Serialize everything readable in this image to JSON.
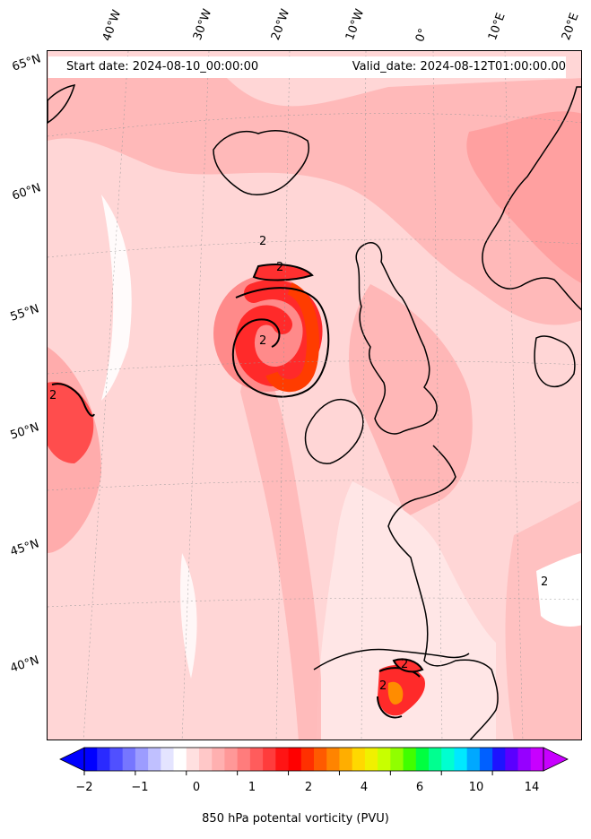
{
  "header": {
    "start_date": "Start date: 2024-08-10_00:00:00",
    "valid_date": "Valid_date: 2024-08-12T01:00:00.00"
  },
  "map": {
    "top_longitude_labels": [
      "40°W",
      "30°W",
      "20°W",
      "10°W",
      "0°",
      "10°E",
      "20°E"
    ],
    "left_latitude_labels": [
      "65°N",
      "60°N",
      "55°N",
      "50°N",
      "45°N",
      "40°N"
    ],
    "contour_labels": [
      "2",
      "2",
      "2",
      "2",
      "2",
      "2",
      "2"
    ]
  },
  "colorbar": {
    "tick_labels": [
      "−2",
      "−1",
      "0",
      "1",
      "2",
      "4",
      "6",
      "10",
      "14"
    ],
    "label": "850 hPa potental vorticity (PVU)",
    "colors": [
      "#0000ff",
      "#2a2aff",
      "#5050ff",
      "#7676ff",
      "#9c9cff",
      "#c0c0ff",
      "#e4e4ff",
      "#ffffff",
      "#ffe0e0",
      "#ffc8c8",
      "#ffb0b0",
      "#ff9898",
      "#ff7c7c",
      "#ff5c5c",
      "#ff3c3c",
      "#ff1414",
      "#ff0000",
      "#ff3000",
      "#ff5a00",
      "#ff8400",
      "#ffae00",
      "#ffd800",
      "#f0f000",
      "#c8ff00",
      "#90ff00",
      "#40ff00",
      "#00ff40",
      "#00ff90",
      "#00ffd0",
      "#00e8ff",
      "#00a8ff",
      "#0060ff",
      "#1e14ff",
      "#5a00ff",
      "#9600ff",
      "#c800ff"
    ]
  }
}
